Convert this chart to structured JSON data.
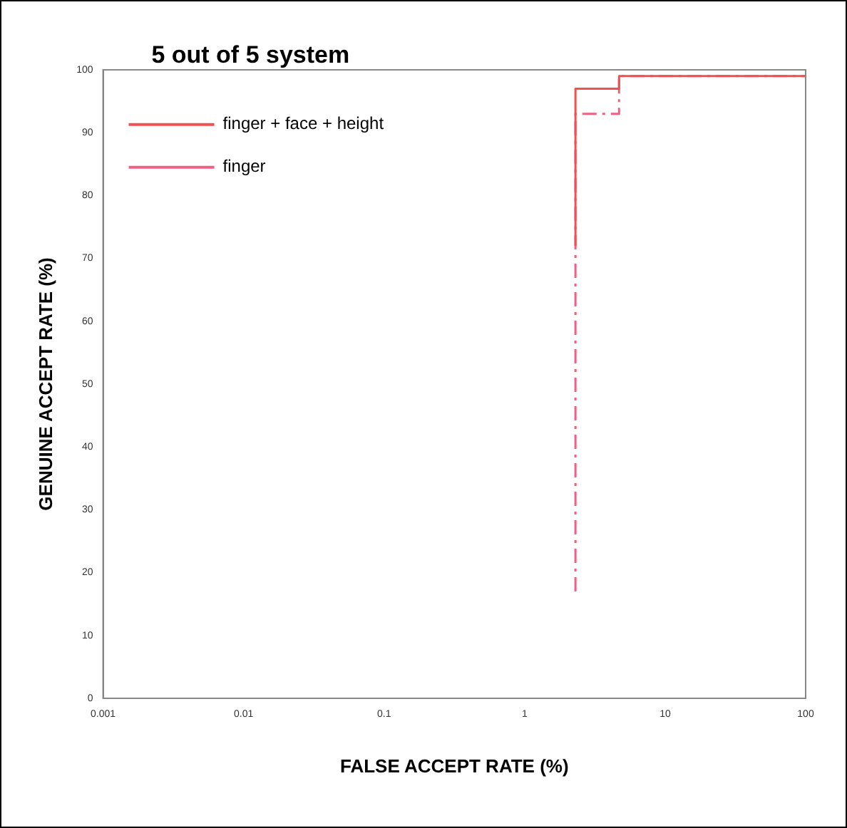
{
  "chart_data": {
    "type": "step",
    "xlabel": "FALSE ACCEPT RATE (%)",
    "ylabel": "GENUINE ACCEPT RATE (%)",
    "legend_title": "5 out of 5 system",
    "log": "x",
    "xlim": [
      0.001,
      100
    ],
    "xticks": [
      0.001,
      0.01,
      0.1,
      1,
      10,
      100
    ],
    "ylim": [
      0,
      100
    ],
    "yticks": [
      0,
      10,
      20,
      30,
      40,
      50,
      60,
      70,
      80,
      90,
      100
    ],
    "grid": false,
    "legend": "top left",
    "marker": "none",
    "series": [
      {
        "name": "finger + face + height",
        "color": "#f05050",
        "line_style": "solid",
        "x": [
          2.3,
          2.3,
          4.7,
          9.2,
          100
        ],
        "values": [
          72,
          95,
          97,
          99,
          99
        ]
      },
      {
        "name": "finger",
        "color": "#f06080",
        "line_style": "dashed",
        "x": [
          2.3,
          2.3,
          4.7,
          9.2,
          100
        ],
        "values": [
          17,
          40,
          93,
          99,
          99
        ]
      }
    ]
  }
}
